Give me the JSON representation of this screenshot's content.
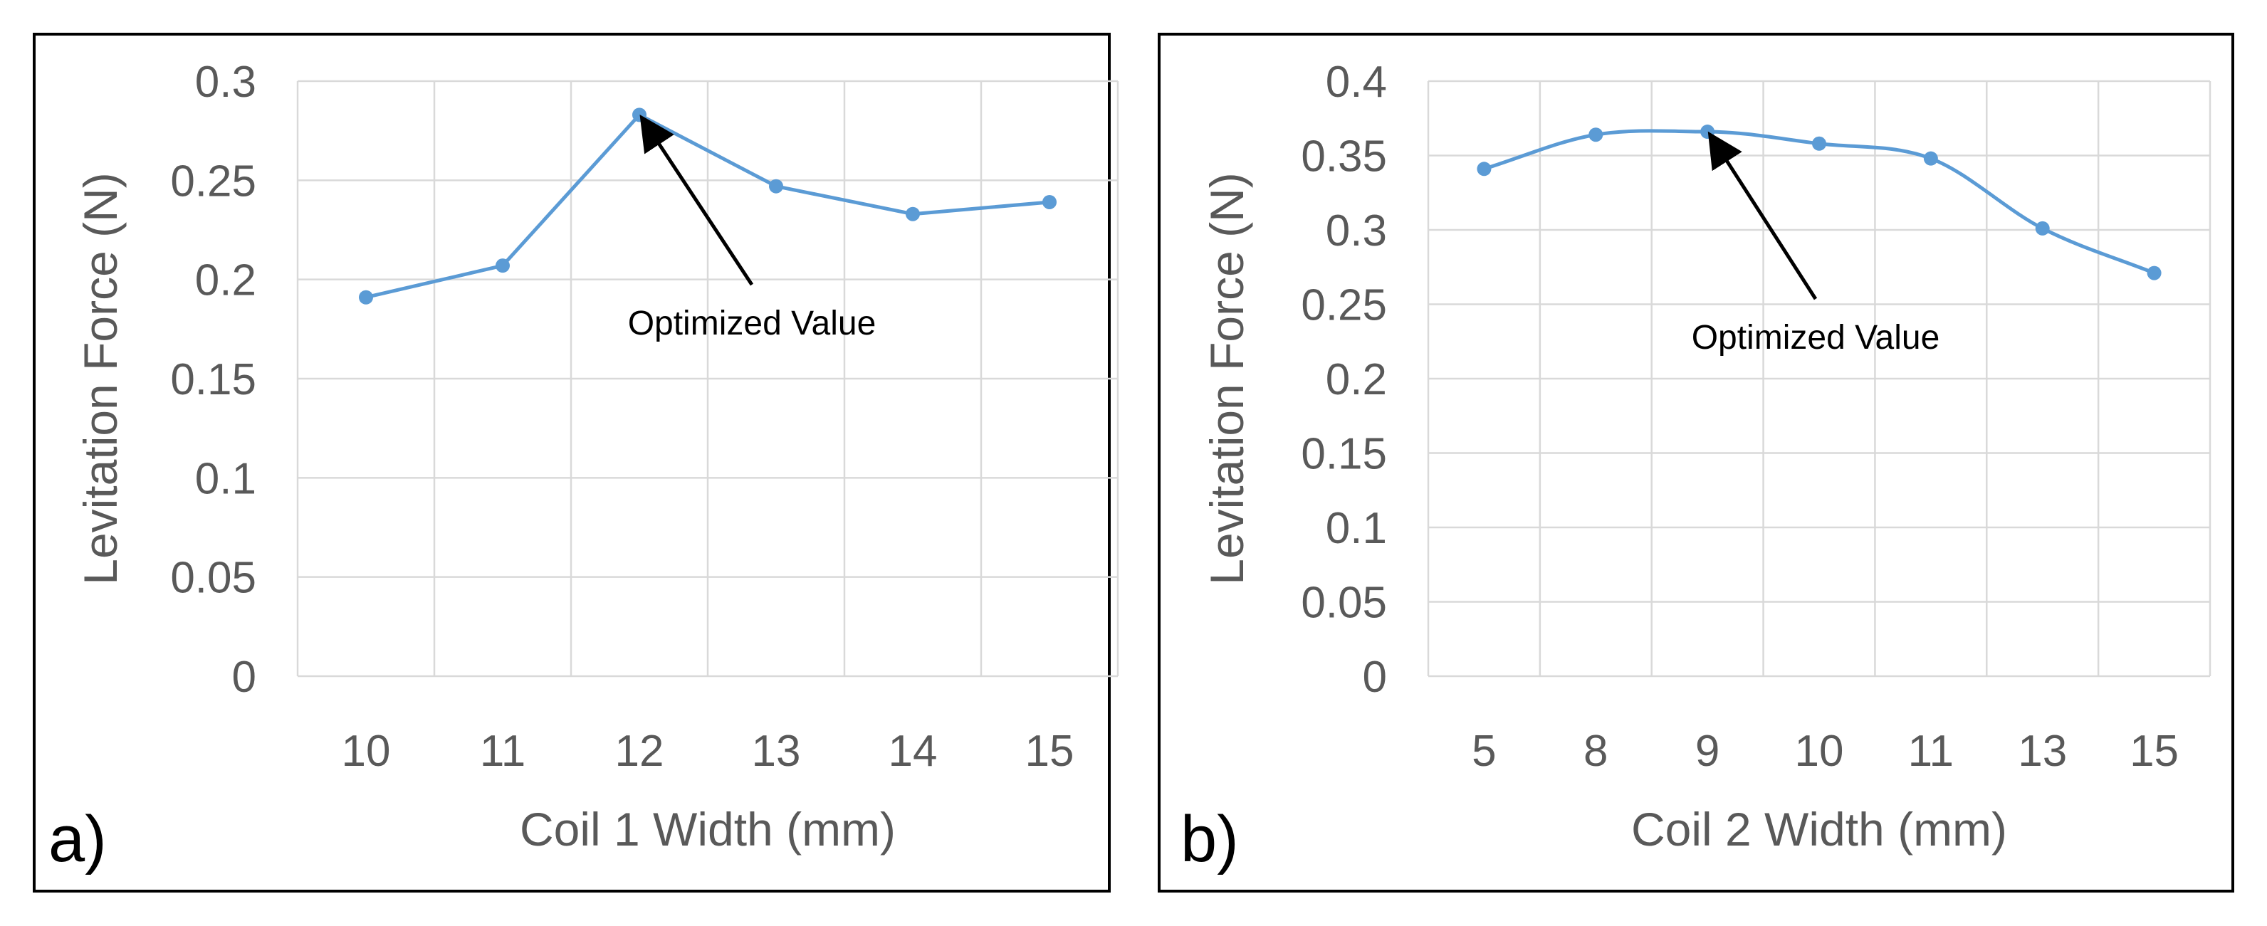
{
  "chart_data": [
    {
      "type": "line",
      "panel_label": "a)",
      "title": "",
      "xlabel": "Coil 1 Width (mm)",
      "ylabel": "Levitation Force (N)",
      "categories": [
        "10",
        "11",
        "12",
        "13",
        "14",
        "15"
      ],
      "series": [
        {
          "name": "",
          "values": [
            0.191,
            0.207,
            0.283,
            0.247,
            0.233,
            0.239
          ],
          "color": "#5b9bd5"
        }
      ],
      "ylim": [
        0,
        0.3
      ],
      "yticks": [
        "0",
        "0.05",
        "0.1",
        "0.15",
        "0.2",
        "0.25",
        "0.3"
      ],
      "smooth": false,
      "grid": true,
      "annotation": {
        "text": "Optimized Value",
        "points_to_category": "12",
        "points_to_value": 0.283
      }
    },
    {
      "type": "line",
      "panel_label": "b)",
      "title": "",
      "xlabel": "Coil 2 Width (mm)",
      "ylabel": "Levitation Force (N)",
      "categories": [
        "5",
        "8",
        "9",
        "10",
        "11",
        "13",
        "15"
      ],
      "series": [
        {
          "name": "",
          "values": [
            0.341,
            0.364,
            0.366,
            0.358,
            0.348,
            0.301,
            0.271
          ],
          "color": "#5b9bd5"
        }
      ],
      "ylim": [
        0,
        0.4
      ],
      "yticks": [
        "0",
        "0.05",
        "0.1",
        "0.15",
        "0.2",
        "0.25",
        "0.3",
        "0.35",
        "0.4"
      ],
      "smooth": true,
      "grid": true,
      "annotation": {
        "text": "Optimized Value",
        "points_to_category": "9",
        "points_to_value": 0.366
      }
    }
  ]
}
